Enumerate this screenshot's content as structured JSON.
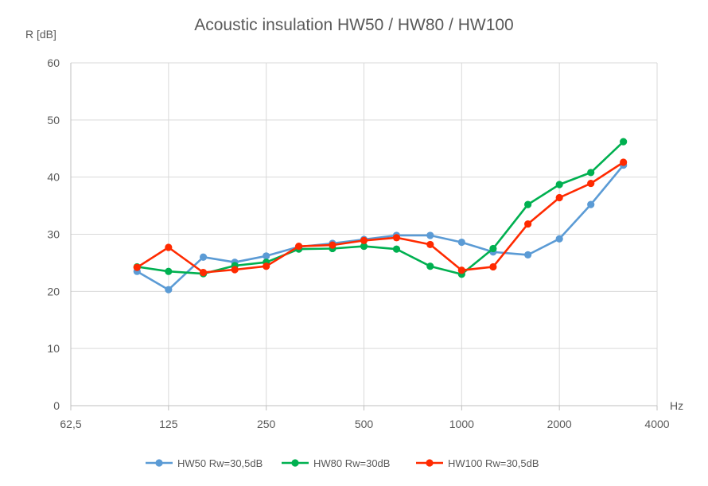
{
  "chart_data": {
    "type": "line",
    "title": "Acoustic insulation HW50 / HW80 / HW100",
    "ylabel": "R [dB]",
    "xlabel": "Hz",
    "x_scale": "log2",
    "xlim": [
      62.5,
      4000
    ],
    "ylim": [
      0,
      60
    ],
    "x_ticks": [
      {
        "value": 62.5,
        "label": "62,5"
      },
      {
        "value": 125,
        "label": "125"
      },
      {
        "value": 250,
        "label": "250"
      },
      {
        "value": 500,
        "label": "500"
      },
      {
        "value": 1000,
        "label": "1000"
      },
      {
        "value": 2000,
        "label": "2000"
      },
      {
        "value": 4000,
        "label": "4000"
      }
    ],
    "y_ticks": [
      0,
      10,
      20,
      30,
      40,
      50,
      60
    ],
    "grid": true,
    "legend_position": "bottom",
    "x": [
      100,
      125,
      160,
      200,
      250,
      315,
      400,
      500,
      630,
      800,
      1000,
      1250,
      1600,
      2000,
      2500,
      3150
    ],
    "series": [
      {
        "name": "HW50 Rw=30,5dB",
        "color": "#5b9bd5",
        "values": [
          23.5,
          20.3,
          26.0,
          25.1,
          26.2,
          27.8,
          28.4,
          29.1,
          29.8,
          29.8,
          28.6,
          26.9,
          26.4,
          29.2,
          35.2,
          42.1
        ]
      },
      {
        "name": "HW80 Rw=30dB",
        "color": "#00b050",
        "values": [
          24.3,
          23.5,
          23.1,
          24.5,
          25.1,
          27.4,
          27.5,
          27.9,
          27.4,
          24.4,
          23.0,
          27.5,
          35.2,
          38.7,
          40.8,
          46.2
        ]
      },
      {
        "name": "HW100 Rw=30,5dB",
        "color": "#ff2a00",
        "values": [
          24.2,
          27.7,
          23.3,
          23.8,
          24.4,
          27.9,
          28.1,
          28.9,
          29.4,
          28.2,
          23.7,
          24.3,
          31.8,
          36.4,
          38.9,
          42.6
        ]
      }
    ]
  }
}
